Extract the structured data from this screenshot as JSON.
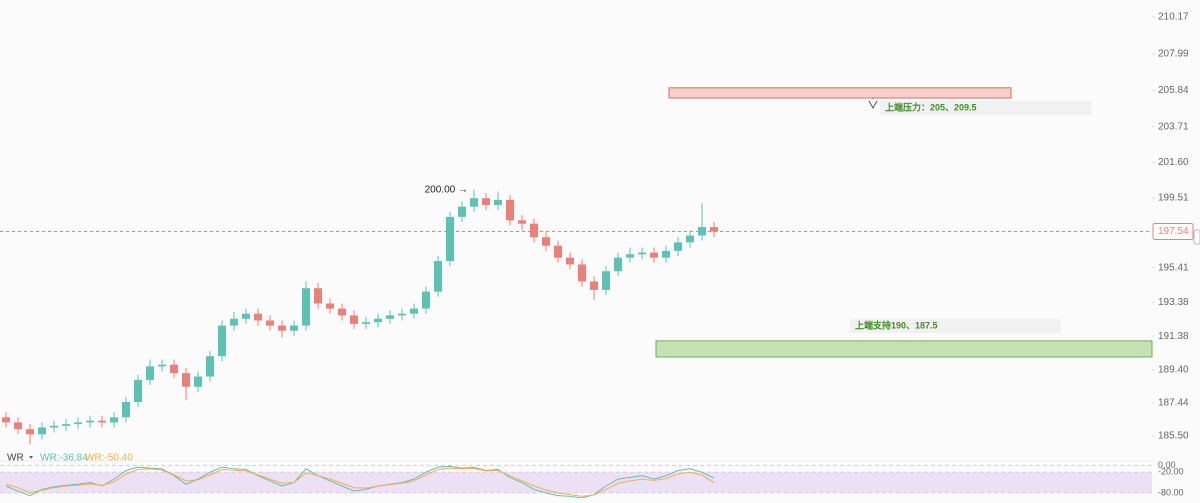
{
  "chart_data": {
    "type": "candlestick",
    "up_color": "#5cc3b4",
    "down_color": "#ec7f77",
    "ylim": [
      184.38,
      211.17
    ],
    "yticks": [
      210.17,
      207.99,
      205.84,
      203.71,
      {
        "value": 201.6,
        "label": "201.60"
      },
      199.51,
      195.41,
      193.38,
      191.38,
      {
        "value": 189.4,
        "label": "189.40"
      },
      187.44,
      {
        "value": 185.5,
        "label": "185.50"
      }
    ],
    "grid": false,
    "open": [
      186.6,
      186.3,
      185.9,
      185.6,
      186.0,
      186.1,
      186.2,
      186.3,
      186.4,
      186.3,
      186.6,
      187.5,
      188.8,
      189.6,
      189.7,
      189.2,
      188.4,
      189.0,
      190.2,
      192.0,
      192.4,
      192.7,
      192.3,
      192.0,
      191.7,
      192.0,
      194.2,
      193.3,
      193.0,
      192.6,
      192.1,
      192.2,
      192.4,
      192.6,
      192.7,
      193.0,
      194.0,
      195.8,
      198.4,
      199.0,
      199.5,
      199.1,
      199.4,
      198.2,
      198.0,
      197.2,
      196.7,
      196.0,
      195.6,
      194.6,
      194.1,
      195.2,
      196.0,
      196.2,
      196.3,
      196.0,
      196.4,
      196.9,
      197.3,
      197.8
    ],
    "high": [
      186.9,
      186.6,
      186.2,
      186.3,
      186.4,
      186.5,
      186.6,
      186.7,
      186.7,
      186.9,
      187.8,
      189.1,
      190.0,
      190.0,
      190.0,
      189.5,
      189.3,
      190.5,
      192.3,
      192.8,
      193.0,
      193.0,
      192.6,
      192.3,
      192.3,
      194.6,
      194.5,
      193.6,
      193.3,
      192.9,
      192.5,
      192.7,
      192.9,
      193.0,
      193.3,
      194.3,
      196.1,
      198.7,
      199.3,
      200.0,
      199.8,
      199.9,
      199.7,
      198.5,
      198.3,
      197.5,
      197.0,
      196.3,
      195.9,
      194.9,
      195.5,
      196.3,
      196.6,
      196.6,
      196.6,
      196.7,
      197.2,
      197.6,
      199.2,
      198.1
    ],
    "low": [
      186.0,
      185.6,
      185.0,
      185.3,
      185.7,
      185.8,
      185.9,
      186.0,
      186.0,
      186.0,
      186.3,
      187.2,
      188.5,
      189.3,
      188.9,
      187.6,
      188.1,
      188.7,
      189.9,
      191.7,
      192.1,
      192.0,
      191.7,
      191.3,
      191.4,
      191.7,
      193.0,
      192.7,
      192.3,
      191.8,
      191.8,
      191.9,
      192.1,
      192.3,
      192.4,
      192.7,
      193.7,
      195.5,
      198.1,
      198.7,
      198.8,
      198.8,
      197.9,
      197.6,
      196.9,
      196.4,
      195.7,
      195.3,
      194.3,
      193.5,
      193.8,
      194.9,
      195.7,
      195.9,
      195.7,
      195.7,
      196.1,
      196.6,
      197.0,
      197.2
    ],
    "close": [
      186.3,
      185.9,
      185.6,
      186.0,
      186.1,
      186.2,
      186.3,
      186.4,
      186.3,
      186.6,
      187.5,
      188.8,
      189.6,
      189.7,
      189.2,
      188.4,
      189.0,
      190.2,
      192.0,
      192.4,
      192.7,
      192.3,
      192.0,
      191.7,
      192.0,
      194.2,
      193.3,
      193.0,
      192.6,
      192.1,
      192.2,
      192.4,
      192.6,
      192.7,
      193.0,
      194.0,
      195.8,
      198.4,
      199.0,
      199.5,
      199.1,
      199.4,
      198.2,
      198.0,
      197.2,
      196.7,
      196.0,
      195.6,
      194.6,
      194.1,
      195.2,
      196.0,
      196.2,
      196.3,
      196.0,
      196.4,
      196.9,
      197.3,
      197.8,
      197.54
    ],
    "last_price": {
      "value": 197.54,
      "color": "#ec7f77"
    },
    "high_marker": {
      "value": 200,
      "label": "200.00 →",
      "index": 39
    },
    "zones": [
      {
        "low": 205.4,
        "high": 206.0,
        "color": "#f7cfcd",
        "border": "#e56a62",
        "label": "上端压力：205、209.5"
      },
      {
        "low": 190.15,
        "high": 191.1,
        "color": "#c6e2b5",
        "border": "#6eae55",
        "label": "上端支持190、187.5"
      }
    ],
    "indicator": {
      "name": "WR",
      "ylim": [
        -92,
        4
      ],
      "yticks": [
        {
          "value": 0,
          "label": "0.00"
        },
        {
          "value": -20,
          "label": "-20.00"
        },
        {
          "value": -80,
          "label": "-80.00"
        }
      ],
      "series": [
        {
          "name": "WR:-36.84",
          "color": "#5fbfb0",
          "values": [
            -60,
            -75,
            -88,
            -70,
            -62,
            -58,
            -55,
            -50,
            -60,
            -40,
            -15,
            -5,
            -8,
            -10,
            -30,
            -55,
            -40,
            -20,
            -5,
            -10,
            -12,
            -30,
            -45,
            -60,
            -50,
            -10,
            -30,
            -45,
            -60,
            -75,
            -70,
            -60,
            -55,
            -50,
            -40,
            -20,
            -5,
            -3,
            -8,
            -6,
            -15,
            -12,
            -35,
            -50,
            -70,
            -80,
            -88,
            -90,
            -95,
            -85,
            -60,
            -40,
            -35,
            -30,
            -40,
            -30,
            -15,
            -10,
            -20,
            -36.84
          ]
        },
        {
          "name": "WR:-50.40",
          "color": "#efb04c",
          "values": [
            -55,
            -65,
            -80,
            -72,
            -65,
            -60,
            -58,
            -54,
            -58,
            -48,
            -25,
            -12,
            -10,
            -14,
            -28,
            -45,
            -42,
            -28,
            -12,
            -14,
            -16,
            -28,
            -40,
            -52,
            -50,
            -22,
            -30,
            -40,
            -52,
            -65,
            -66,
            -60,
            -56,
            -52,
            -45,
            -28,
            -12,
            -8,
            -10,
            -9,
            -16,
            -15,
            -30,
            -45,
            -60,
            -72,
            -80,
            -85,
            -90,
            -86,
            -70,
            -52,
            -45,
            -40,
            -44,
            -38,
            -25,
            -20,
            -28,
            -50.4
          ]
        }
      ]
    }
  }
}
